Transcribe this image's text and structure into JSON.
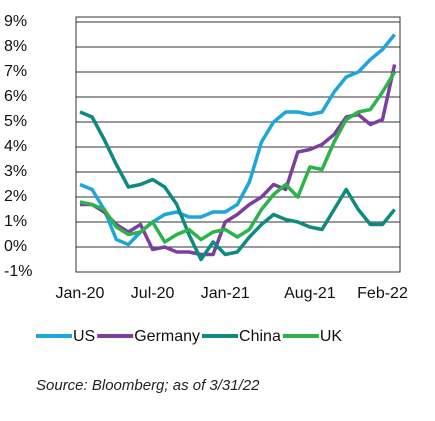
{
  "chart_data": {
    "type": "line",
    "source": "Source: Bloomberg;  as of 3/31/22",
    "categories": [
      "Jan-20",
      null,
      null,
      null,
      null,
      null,
      "Jul-20",
      null,
      null,
      null,
      null,
      null,
      "Jan-21",
      null,
      null,
      null,
      null,
      null,
      null,
      "Aug-21",
      null,
      null,
      null,
      null,
      null,
      "Feb-22",
      null
    ],
    "series": [
      {
        "name": "US",
        "color": "#1ea5dc",
        "values": [
          2.5,
          2.3,
          1.5,
          0.3,
          0.1,
          0.6,
          1.0,
          1.3,
          1.4,
          1.2,
          1.2,
          1.4,
          1.4,
          1.7,
          2.6,
          4.2,
          5.0,
          5.4,
          5.4,
          5.3,
          5.4,
          6.2,
          6.8,
          7.0,
          7.5,
          7.9,
          8.5
        ]
      },
      {
        "name": "Germany",
        "color": "#7b3fa0",
        "values": [
          1.7,
          1.7,
          1.4,
          0.9,
          0.6,
          0.9,
          -0.1,
          0.0,
          -0.2,
          -0.2,
          -0.3,
          -0.3,
          1.0,
          1.3,
          1.7,
          2.0,
          2.5,
          2.3,
          3.8,
          3.9,
          4.1,
          4.5,
          5.2,
          5.3,
          4.9,
          5.1,
          7.3
        ]
      },
      {
        "name": "China",
        "color": "#0f8a80",
        "values": [
          5.4,
          5.2,
          4.3,
          3.3,
          2.4,
          2.5,
          2.7,
          2.4,
          1.7,
          0.5,
          -0.5,
          0.2,
          -0.3,
          -0.2,
          0.4,
          0.9,
          1.3,
          1.1,
          1.0,
          0.8,
          0.7,
          1.5,
          2.3,
          1.5,
          0.9,
          0.9,
          1.5
        ]
      },
      {
        "name": "UK",
        "color": "#2cb34a",
        "values": [
          1.8,
          1.7,
          1.5,
          0.8,
          0.5,
          0.6,
          1.0,
          0.2,
          0.5,
          0.7,
          0.3,
          0.6,
          0.7,
          0.4,
          0.7,
          1.5,
          2.1,
          2.5,
          2.0,
          3.2,
          3.1,
          4.2,
          5.1,
          5.4,
          5.5,
          6.2,
          7.0
        ]
      }
    ],
    "ylim": [
      -1,
      9
    ],
    "yticks": [
      {
        "value": -1,
        "label": "-1%"
      },
      {
        "value": 0,
        "label": "0%"
      },
      {
        "value": 1,
        "label": "1%"
      },
      {
        "value": 2,
        "label": "2%"
      },
      {
        "value": 3,
        "label": "3%"
      },
      {
        "value": 4,
        "label": "4%"
      },
      {
        "value": 5,
        "label": "5%"
      },
      {
        "value": 6,
        "label": "6%"
      },
      {
        "value": 7,
        "label": "7%"
      },
      {
        "value": 8,
        "label": "8%"
      },
      {
        "value": 9,
        "label": "9%"
      }
    ],
    "grid": true
  }
}
